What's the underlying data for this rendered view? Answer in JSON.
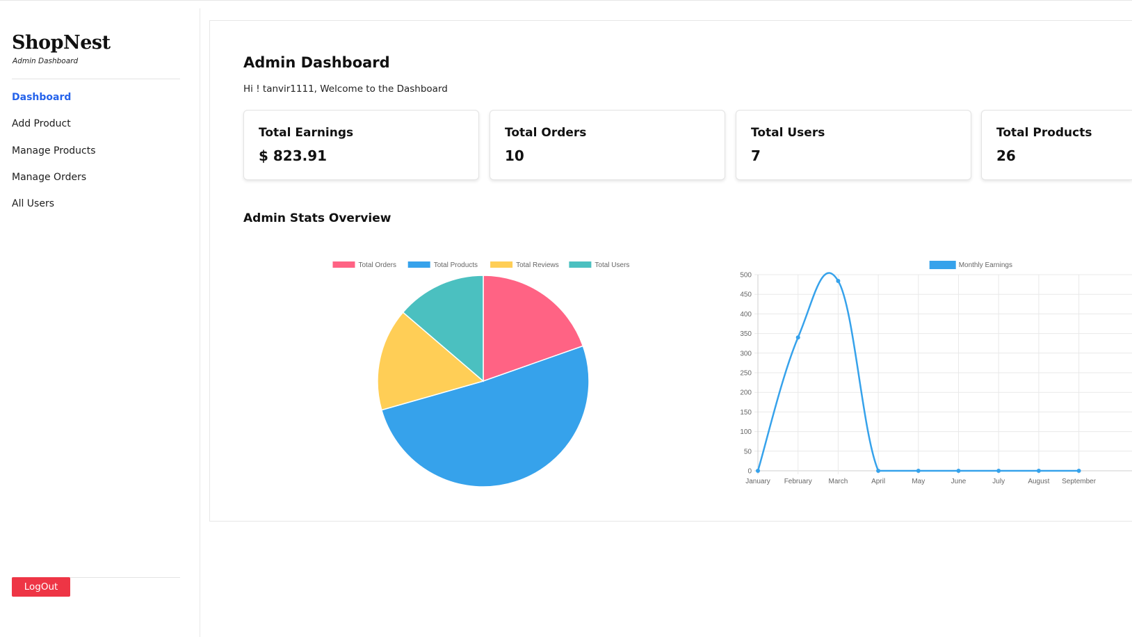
{
  "sidebar": {
    "brand": "ShopNest",
    "subtitle": "Admin Dashboard",
    "nav": [
      {
        "label": "Dashboard",
        "active": true
      },
      {
        "label": "Add Product",
        "active": false
      },
      {
        "label": "Manage Products",
        "active": false
      },
      {
        "label": "Manage Orders",
        "active": false
      },
      {
        "label": "All Users",
        "active": false
      }
    ],
    "logout_label": "LogOut"
  },
  "main": {
    "title": "Admin Dashboard",
    "welcome": "Hi ! tanvir1111, Welcome to the Dashboard",
    "stats": [
      {
        "label": "Total Earnings",
        "value": "$ 823.91"
      },
      {
        "label": "Total Orders",
        "value": "10"
      },
      {
        "label": "Total Users",
        "value": "7"
      },
      {
        "label": "Total Products",
        "value": "26"
      }
    ],
    "section_title": "Admin Stats Overview"
  },
  "colors": {
    "accent": "#2563eb",
    "logout": "#ee3545",
    "orders": "#ff6384",
    "products": "#36a2eb",
    "reviews": "#ffce56",
    "users": "#4bc0c0"
  },
  "chart_data": [
    {
      "type": "pie",
      "labels": [
        "Total Orders",
        "Total Products",
        "Total Reviews",
        "Total Users"
      ],
      "values": [
        10,
        26,
        8,
        7
      ],
      "colors": [
        "#ff6384",
        "#36a2eb",
        "#ffce56",
        "#4bc0c0"
      ],
      "legend": "top"
    },
    {
      "type": "line",
      "series": [
        {
          "name": "Monthly Earnings",
          "values": [
            0,
            340,
            484,
            0,
            0,
            0,
            0,
            0,
            0
          ],
          "color": "#36a2eb"
        }
      ],
      "categories": [
        "January",
        "February",
        "March",
        "April",
        "May",
        "June",
        "July",
        "August",
        "September"
      ],
      "ylim": [
        0,
        500
      ],
      "yticks": [
        0,
        50,
        100,
        150,
        200,
        250,
        300,
        350,
        400,
        450,
        500
      ],
      "grid": true,
      "legend": "top"
    }
  ]
}
